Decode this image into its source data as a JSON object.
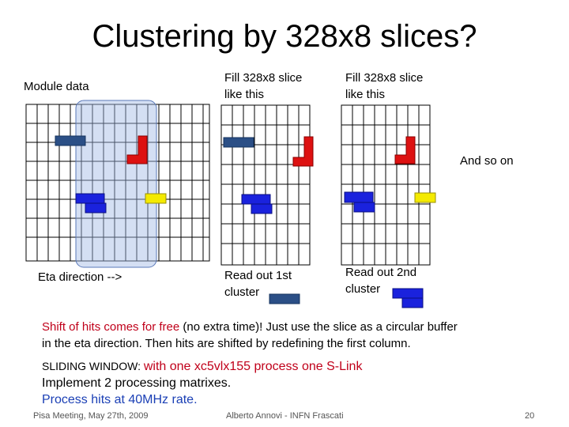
{
  "slide": {
    "title": "Clustering by 328x8 slices?",
    "labels": {
      "module_data": "Module data",
      "fill_1": [
        "Fill 328x8 slice",
        "like this"
      ],
      "fill_2": [
        "Fill 328x8 slice",
        "like this"
      ],
      "and_so_on": "And so on",
      "eta_direction": "Eta direction -->",
      "read_out_1": [
        "Read out 1st",
        "cluster"
      ],
      "read_out_2": [
        "Read out 2nd",
        "cluster"
      ]
    },
    "shift_text": {
      "red_part": "Shift of hits comes for free",
      "rest_line1": " (no extra time)! Just use the slice as a circular buffer",
      "line2": "in the eta direction. Then hits are shifted by redefining the first column."
    },
    "sliding": {
      "prefix": "SLIDING WINDOW: ",
      "highlight": "with one xc5vlx155 process one S-Link",
      "line2": "Implement 2 processing matrixes.",
      "line3": "Process hits at 40MHz rate."
    },
    "footer": {
      "left": "Pisa Meeting, May 27th, 2009",
      "center": "Alberto Annovi - INFN Frascati",
      "page": "20"
    },
    "colors": {
      "dark_blue": "#2b4f86",
      "red": "#dd1111",
      "blue": "#1a22dd",
      "yellow": "#f4ea00",
      "window": "#9fb7e4"
    }
  }
}
